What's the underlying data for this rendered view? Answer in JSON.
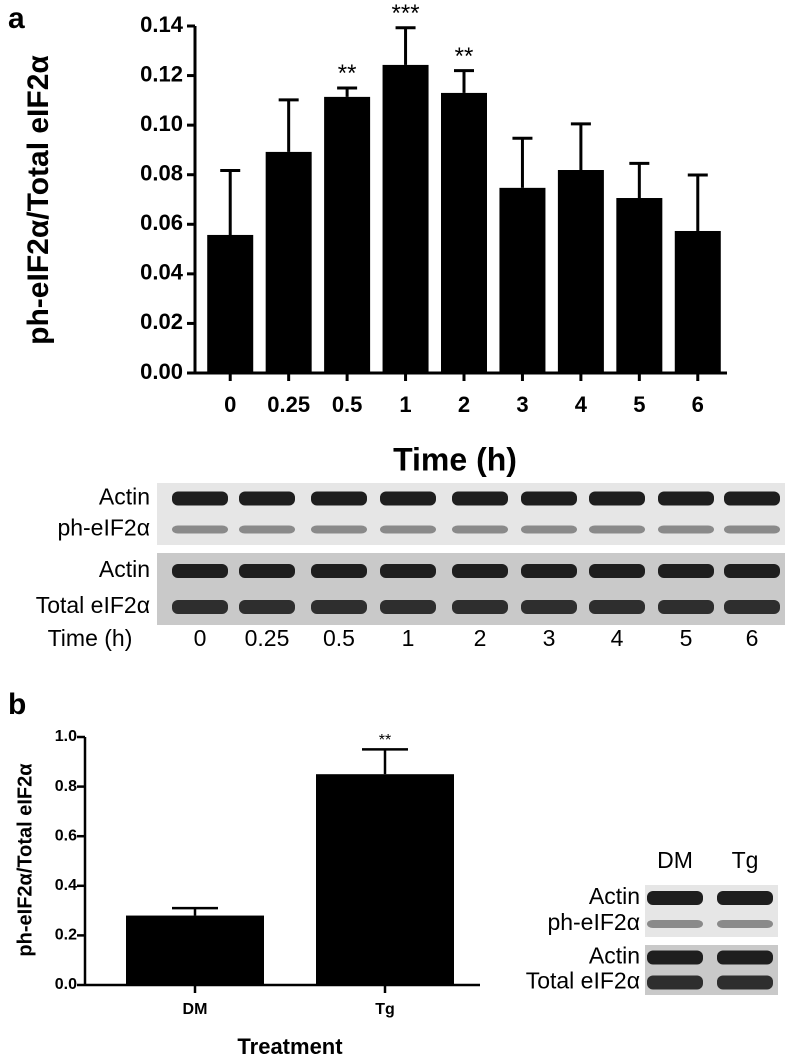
{
  "panel_labels": [
    "a",
    "b"
  ],
  "chart_data": [
    {
      "type": "bar",
      "y_label": "ph-eIF2α/Total eIF2α",
      "x_label": "Time (h)",
      "categories": [
        "0",
        "0.25",
        "0.5",
        "1",
        "2",
        "3",
        "4",
        "5",
        "6"
      ],
      "values": [
        0.0557,
        0.0892,
        0.1114,
        0.1243,
        0.113,
        0.0747,
        0.0819,
        0.0706,
        0.0573
      ],
      "errors": [
        0.026,
        0.021,
        0.0036,
        0.015,
        0.009,
        0.02,
        0.0186,
        0.014,
        0.0226
      ],
      "significance": [
        null,
        null,
        "**",
        "***",
        "**",
        null,
        null,
        null,
        null
      ],
      "color": "#000000",
      "ylim": [
        0,
        0.14
      ],
      "yticks": [
        {
          "value": 0,
          "label": "0.00"
        },
        0.02,
        0.04,
        0.06,
        0.08,
        {
          "value": 0.1,
          "label": "0.10"
        },
        0.12,
        0.14
      ]
    },
    {
      "type": "bar",
      "y_label": "ph-eIF2α/Total eIF2α",
      "x_label": "Treatment",
      "categories": [
        "DM",
        "Tg"
      ],
      "values": [
        0.28,
        0.85
      ],
      "errors": [
        0.03,
        0.1
      ],
      "significance": [
        null,
        "**"
      ],
      "color": "#000000",
      "ylim": [
        0,
        1.0
      ],
      "yticks": [
        {
          "value": 0,
          "label": "0.0"
        },
        0.2,
        0.4,
        0.6,
        0.8,
        {
          "value": 1.0,
          "label": "1.0"
        }
      ]
    }
  ],
  "blots": [
    {
      "lane_header": "Time (h)",
      "lanes": [
        "0",
        "0.25",
        "0.5",
        "1",
        "2",
        "3",
        "4",
        "5",
        "6"
      ],
      "blocks": [
        [
          "Actin",
          "ph-eIF2α"
        ],
        [
          "Actin",
          "Total eIF2α"
        ]
      ]
    },
    {
      "lanes": [
        "DM",
        "Tg"
      ],
      "blocks": [
        [
          "Actin",
          "ph-eIF2α"
        ],
        [
          "Actin",
          "Total eIF2α"
        ]
      ]
    }
  ]
}
